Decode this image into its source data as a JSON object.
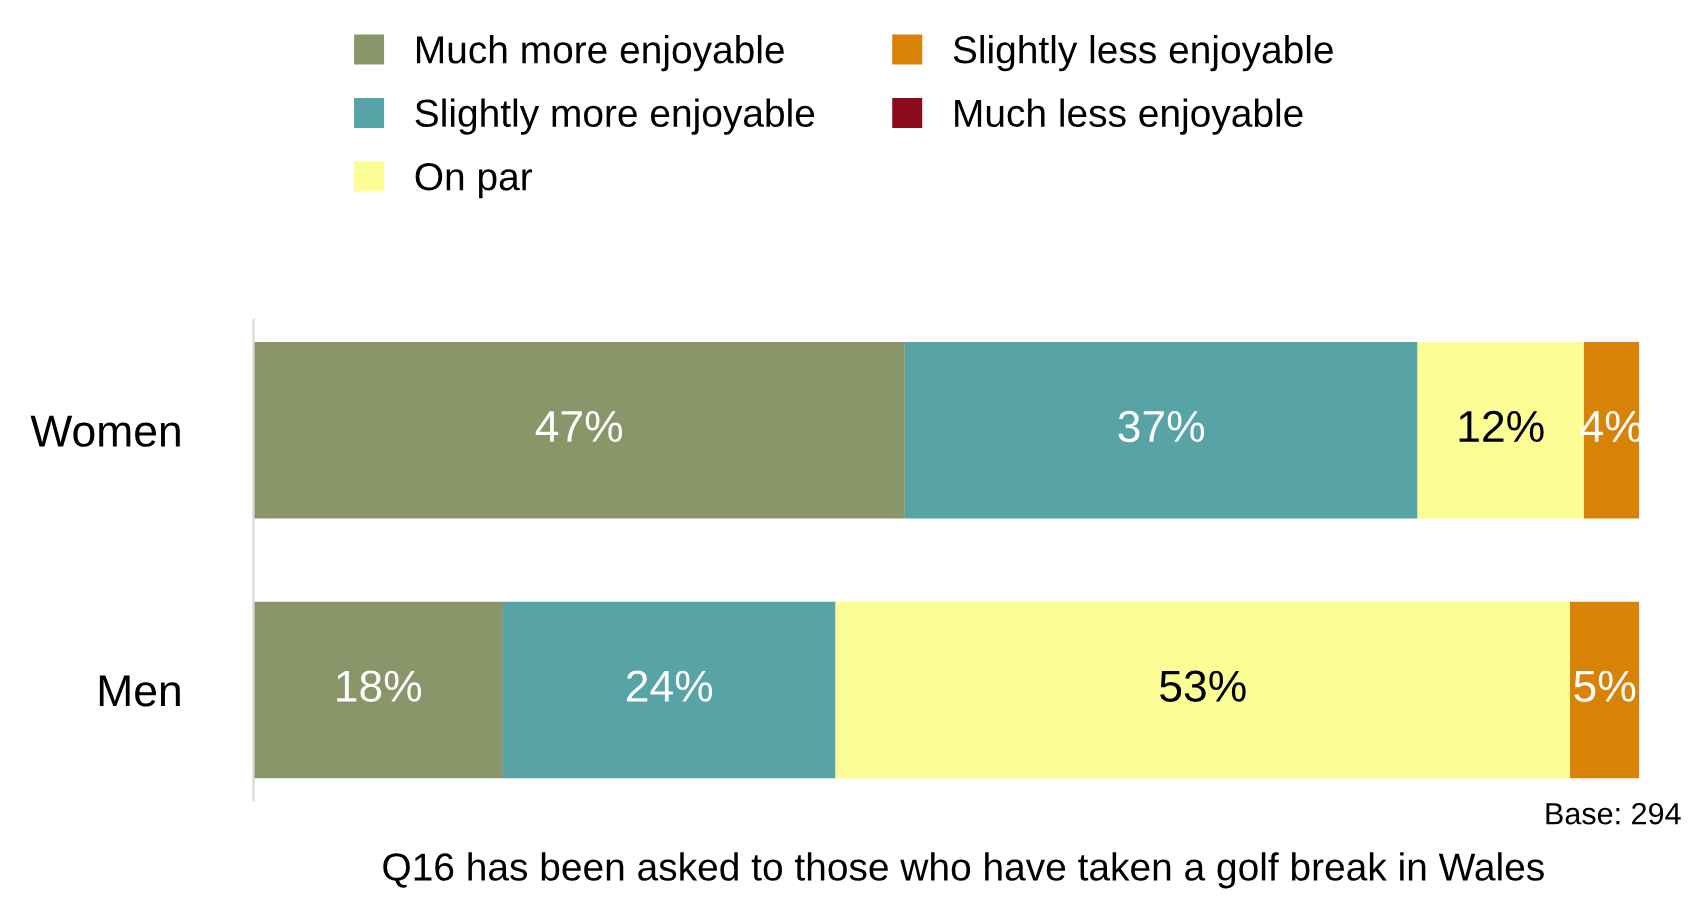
{
  "chart_data": {
    "type": "bar",
    "orientation": "horizontal",
    "stacked": true,
    "categories": [
      "Women",
      "Men"
    ],
    "series": [
      {
        "name": "Much more enjoyable",
        "color": "#8a9669",
        "values": [
          47,
          18
        ],
        "value_labels": [
          "47%",
          "18%"
        ]
      },
      {
        "name": "Slightly more enjoyable",
        "color": "#57a3a5",
        "values": [
          37,
          24
        ],
        "value_labels": [
          "37%",
          "24%"
        ]
      },
      {
        "name": "On par",
        "color": "#fdfd96",
        "values": [
          12,
          53
        ],
        "value_labels": [
          "12%",
          "53%"
        ]
      },
      {
        "name": "Slightly less enjoyable",
        "color": "#d98208",
        "values": [
          4,
          5
        ],
        "value_labels": [
          "4%",
          "5%"
        ]
      },
      {
        "name": "Much less enjoyable",
        "color": "#8b0a1e",
        "values": [
          0,
          0
        ],
        "value_labels": [
          null,
          null
        ]
      }
    ],
    "xlim": [
      0,
      100
    ],
    "tick_labels": "y",
    "legend": "top",
    "grid": false,
    "annotations": [
      "Base: 294",
      "Q16 has been asked to those who have taken a golf break in Wales"
    ]
  }
}
